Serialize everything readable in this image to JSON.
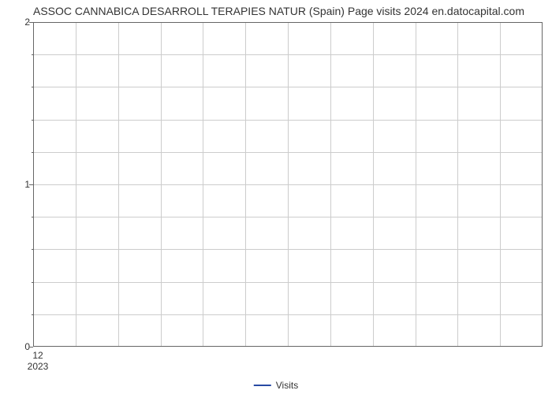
{
  "chart": {
    "type": "line",
    "title": "ASSOC CANNABICA DESARROLL TERAPIES NATUR (Spain) Page visits 2024 en.datocapital.com",
    "title_fontsize": 14,
    "title_color": "#333333",
    "background_color": "#ffffff",
    "plot_border_color": "#666666",
    "grid_color": "#cccccc",
    "y": {
      "min": 0,
      "max": 2,
      "major_ticks": [
        0,
        1,
        2
      ],
      "minor_step": 0.2,
      "label_color": "#333333",
      "label_fontsize": 12
    },
    "x": {
      "tick_label": "12",
      "year_label": "2023",
      "n_vgrid": 12,
      "label_color": "#333333",
      "label_fontsize": 12
    },
    "series": [
      {
        "name": "Visits",
        "color": "#274aa3",
        "line_width": 2,
        "data": []
      }
    ],
    "legend": {
      "position": "bottom-center",
      "fontsize": 12,
      "color": "#333333"
    }
  }
}
